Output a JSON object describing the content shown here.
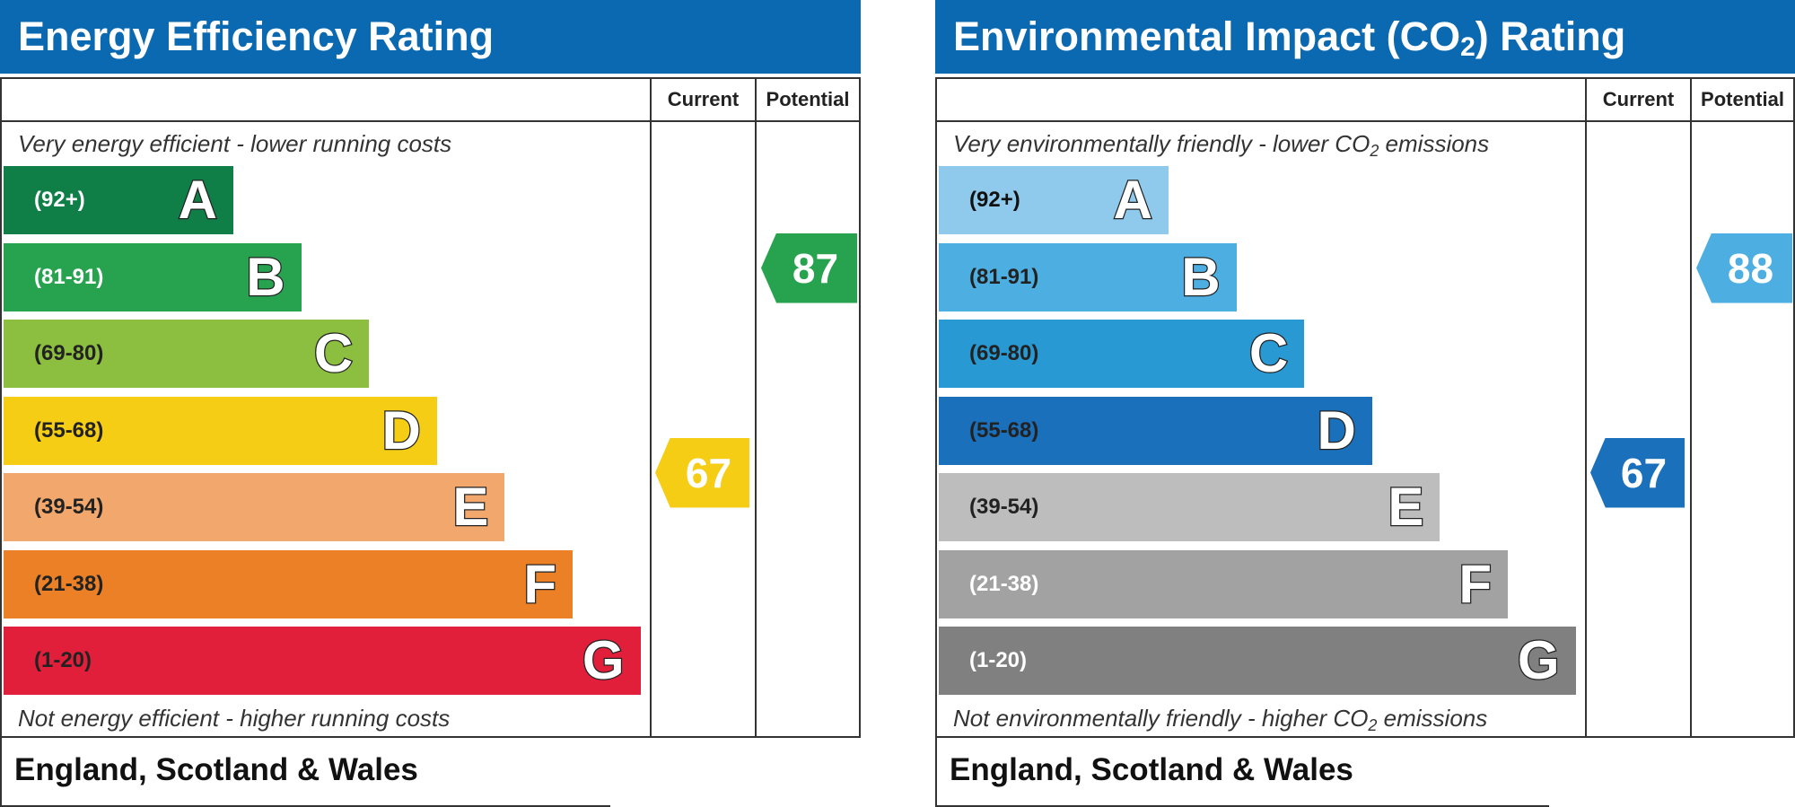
{
  "energy": {
    "title": "Energy Efficiency Rating",
    "col_current": "Current",
    "col_potential": "Potential",
    "top_note": "Very energy efficient - lower running costs",
    "bottom_note": "Not energy efficient - higher running costs",
    "footer": "England, Scotland & Wales",
    "bands": [
      {
        "range": "(92+)",
        "letter": "A",
        "color": "#0f7f47",
        "text_color": "#ffffff"
      },
      {
        "range": "(81-91)",
        "letter": "B",
        "color": "#27a350",
        "text_color": "#ffffff"
      },
      {
        "range": "(69-80)",
        "letter": "C",
        "color": "#8cbe3f",
        "text_color": "#222222"
      },
      {
        "range": "(55-68)",
        "letter": "D",
        "color": "#f6cd15",
        "text_color": "#222222"
      },
      {
        "range": "(39-54)",
        "letter": "E",
        "color": "#f2a86c",
        "text_color": "#222222"
      },
      {
        "range": "(21-38)",
        "letter": "F",
        "color": "#ec8026",
        "text_color": "#222222"
      },
      {
        "range": "(1-20)",
        "letter": "G",
        "color": "#e21f3b",
        "text_color": "#222222"
      }
    ],
    "current": {
      "value": "67",
      "band": "D",
      "color": "#f6cd15"
    },
    "potential": {
      "value": "87",
      "band": "B",
      "color": "#27a350"
    }
  },
  "environment": {
    "title_pre": "Environmental Impact (CO",
    "title_sub": "2",
    "title_post": ") Rating",
    "col_current": "Current",
    "col_potential": "Potential",
    "top_note_pre": "Very environmentally friendly - lower CO",
    "top_note_sub": "2",
    "top_note_post": " emissions",
    "bottom_note_pre": "Not environmentally friendly - higher CO",
    "bottom_note_sub": "2",
    "bottom_note_post": " emissions",
    "footer": "England, Scotland & Wales",
    "bands": [
      {
        "range": "(92+)",
        "letter": "A",
        "color": "#8fcaec",
        "text_color": "#111111"
      },
      {
        "range": "(81-91)",
        "letter": "B",
        "color": "#4dafe1",
        "text_color": "#222222"
      },
      {
        "range": "(69-80)",
        "letter": "C",
        "color": "#2899d3",
        "text_color": "#222222"
      },
      {
        "range": "(55-68)",
        "letter": "D",
        "color": "#1a70bb",
        "text_color": "#222222"
      },
      {
        "range": "(39-54)",
        "letter": "E",
        "color": "#bdbdbd",
        "text_color": "#222222"
      },
      {
        "range": "(21-38)",
        "letter": "F",
        "color": "#a2a2a2",
        "text_color": "#ffffff"
      },
      {
        "range": "(1-20)",
        "letter": "G",
        "color": "#808080",
        "text_color": "#ffffff"
      }
    ],
    "current": {
      "value": "67",
      "band": "D",
      "color": "#1a70bb"
    },
    "potential": {
      "value": "88",
      "band": "B",
      "color": "#4dafe1"
    }
  },
  "chart_data": [
    {
      "type": "bar",
      "title": "Energy Efficiency Rating",
      "categories": [
        "A",
        "B",
        "C",
        "D",
        "E",
        "F",
        "G"
      ],
      "ranges": [
        "(92+)",
        "(81-91)",
        "(69-80)",
        "(55-68)",
        "(39-54)",
        "(21-38)",
        "(1-20)"
      ],
      "current": 67,
      "potential": 87
    },
    {
      "type": "bar",
      "title": "Environmental Impact (CO2) Rating",
      "categories": [
        "A",
        "B",
        "C",
        "D",
        "E",
        "F",
        "G"
      ],
      "ranges": [
        "(92+)",
        "(81-91)",
        "(69-80)",
        "(55-68)",
        "(39-54)",
        "(21-38)",
        "(1-20)"
      ],
      "current": 67,
      "potential": 88
    }
  ]
}
